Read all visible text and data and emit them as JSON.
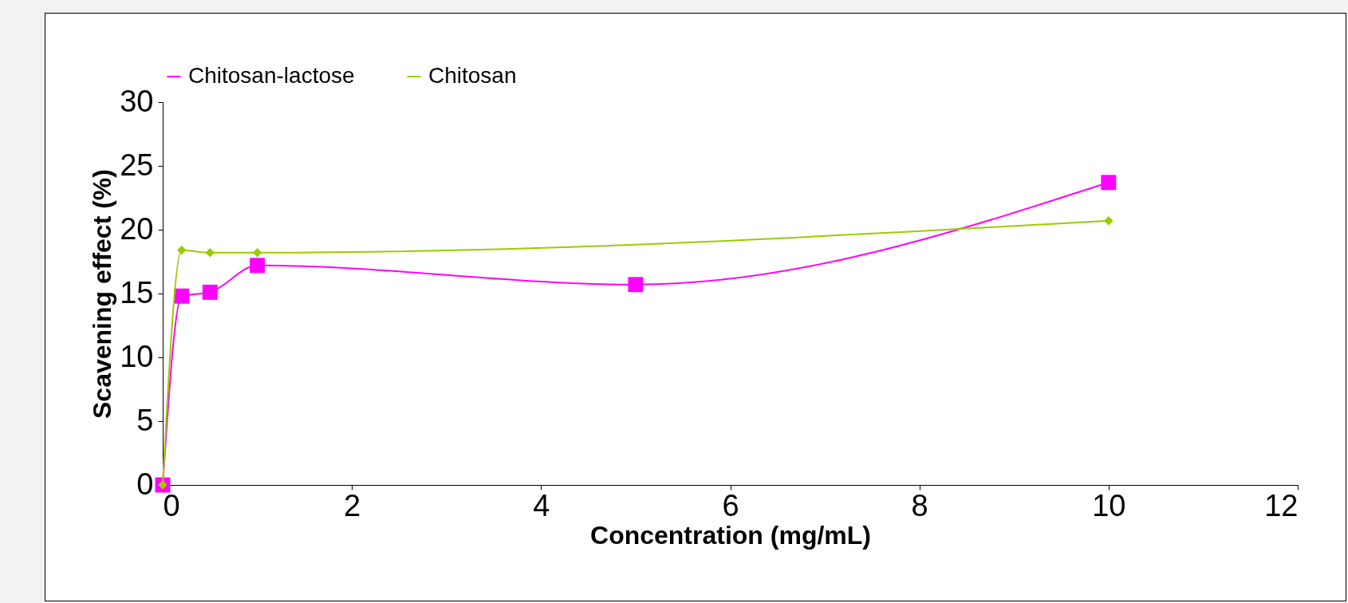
{
  "chart_data": {
    "type": "line",
    "xlabel": "Concentration (mg/mL)",
    "ylabel": "Scavening effect (%)",
    "xlim": [
      0,
      12
    ],
    "xticks": [
      0,
      2,
      4,
      6,
      8,
      10,
      12
    ],
    "ylim": [
      0,
      30
    ],
    "yticks": [
      0,
      5,
      10,
      15,
      20,
      25,
      30
    ],
    "grid": false,
    "legend": "top",
    "series": [
      {
        "name": "Chitosan-lactose",
        "color": "#ff00ff",
        "marker": "square",
        "x": [
          0,
          0.2,
          0.5,
          1,
          5,
          10
        ],
        "values": [
          0,
          14.8,
          15.1,
          17.2,
          15.7,
          23.7
        ]
      },
      {
        "name": "Chitosan",
        "color": "#99cc00",
        "marker": "diamond",
        "x": [
          0,
          0.2,
          0.5,
          1,
          10
        ],
        "values": [
          0,
          18.4,
          18.2,
          18.2,
          20.7
        ]
      }
    ]
  }
}
